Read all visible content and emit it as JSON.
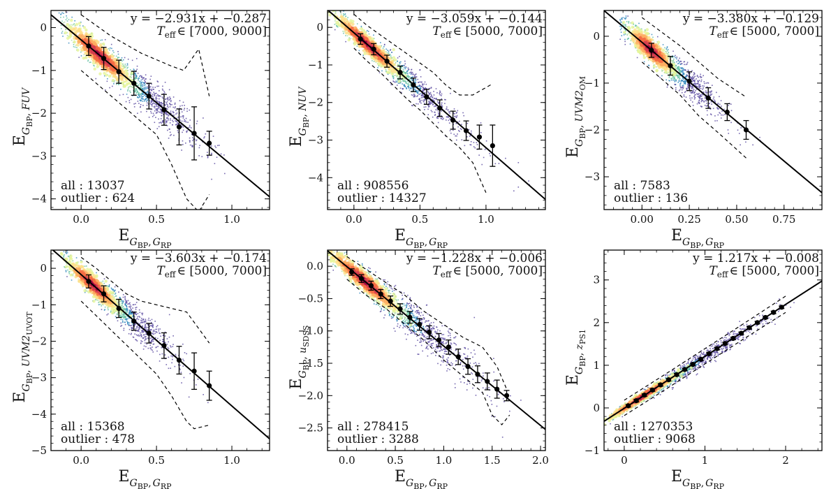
{
  "figure": {
    "description_title": ""
  },
  "chart_data": [
    {
      "type": "scatter",
      "xlabel": {
        "base": "E",
        "sub": "G",
        "subsub": "BP",
        "sub2": "G",
        "sub2sub": "RP"
      },
      "ylabel": {
        "base": "E",
        "sub": "G",
        "subsub": "BP",
        "band": "FUV",
        "band_sub": ""
      },
      "xlim": [
        -0.2,
        1.25
      ],
      "ylim": [
        -4.25,
        0.4
      ],
      "xticks": [
        0.0,
        0.5,
        1.0
      ],
      "xtick_labels": [
        "0.0",
        "0.5",
        "1.0"
      ],
      "yticks": [
        0,
        -1,
        -2,
        -3,
        -4
      ],
      "ytick_labels": [
        "0",
        "−1",
        "−2",
        "−3",
        "−4"
      ],
      "fit_text": "y = −2.931x + −0.287",
      "teff_text": "∈ [7000, 9000]",
      "fit": {
        "slope": -2.931,
        "intercept": -0.287
      },
      "binned": {
        "x": [
          0.05,
          0.15,
          0.25,
          0.35,
          0.45,
          0.55,
          0.65,
          0.75,
          0.85
        ],
        "y": [
          -0.43,
          -0.72,
          -1.03,
          -1.3,
          -1.6,
          -1.92,
          -2.32,
          -2.47,
          -2.7
        ],
        "err": [
          0.22,
          0.26,
          0.27,
          0.28,
          0.3,
          0.36,
          0.42,
          0.62,
          0.28
        ]
      },
      "envelope_upper": {
        "x": [
          0.0,
          0.1,
          0.2,
          0.3,
          0.4,
          0.5,
          0.6,
          0.68,
          0.78,
          0.85
        ],
        "y": [
          0.3,
          0.05,
          -0.2,
          -0.4,
          -0.6,
          -0.75,
          -0.9,
          -1.0,
          -0.5,
          -1.6
        ]
      },
      "envelope_lower": {
        "x": [
          0.0,
          0.1,
          0.2,
          0.3,
          0.4,
          0.5,
          0.6,
          0.7,
          0.78,
          0.85
        ],
        "y": [
          -1.0,
          -1.3,
          -1.6,
          -1.9,
          -2.2,
          -2.5,
          -3.2,
          -4.0,
          -4.3,
          -3.9
        ]
      },
      "all_text": "all : 13037",
      "outlier_text": "outlier : 624",
      "cloud": {
        "x_center": 0.3,
        "x_spread": 0.25,
        "y_scatter": 0.25,
        "x_min": -0.15,
        "x_max": 0.95
      }
    },
    {
      "type": "scatter",
      "xlabel": {
        "base": "E",
        "sub": "G",
        "subsub": "BP",
        "sub2": "G",
        "sub2sub": "RP"
      },
      "ylabel": {
        "base": "E",
        "sub": "G",
        "subsub": "BP",
        "band": "NUV",
        "band_sub": ""
      },
      "xlim": [
        -0.2,
        1.45
      ],
      "ylim": [
        -4.85,
        0.45
      ],
      "xticks": [
        0.0,
        0.5,
        1.0
      ],
      "xtick_labels": [
        "0.0",
        "0.5",
        "1.0"
      ],
      "yticks": [
        0,
        -1,
        -2,
        -3,
        -4
      ],
      "ytick_labels": [
        "0",
        "−1",
        "−2",
        "−3",
        "−4"
      ],
      "fit_text": "y = −3.059x + −0.144",
      "teff_text": "∈ [5000, 7000]",
      "fit": {
        "slope": -3.059,
        "intercept": -0.144
      },
      "binned": {
        "x": [
          0.05,
          0.15,
          0.25,
          0.35,
          0.45,
          0.55,
          0.65,
          0.75,
          0.85,
          0.95,
          1.05
        ],
        "y": [
          -0.31,
          -0.58,
          -0.9,
          -1.2,
          -1.53,
          -1.85,
          -2.15,
          -2.47,
          -2.75,
          -2.92,
          -3.15
        ],
        "err": [
          0.14,
          0.15,
          0.16,
          0.17,
          0.18,
          0.2,
          0.22,
          0.24,
          0.26,
          0.32,
          0.55
        ]
      },
      "envelope_upper": {
        "x": [
          0.0,
          0.1,
          0.2,
          0.3,
          0.4,
          0.5,
          0.6,
          0.7,
          0.8,
          0.9,
          1.05
        ],
        "y": [
          0.35,
          0.05,
          -0.2,
          -0.45,
          -0.7,
          -0.95,
          -1.2,
          -1.55,
          -1.8,
          -1.8,
          -1.5
        ]
      },
      "envelope_lower": {
        "x": [
          0.0,
          0.1,
          0.2,
          0.3,
          0.4,
          0.5,
          0.6,
          0.7,
          0.8,
          0.9,
          1.0
        ],
        "y": [
          -0.55,
          -0.9,
          -1.2,
          -1.55,
          -1.9,
          -2.2,
          -2.55,
          -2.9,
          -3.2,
          -3.6,
          -4.4
        ]
      },
      "all_text": "all : 908556",
      "outlier_text": "outlier : 14327",
      "cloud": {
        "x_center": 0.25,
        "x_spread": 0.3,
        "y_scatter": 0.22,
        "x_min": -0.15,
        "x_max": 1.35
      }
    },
    {
      "type": "scatter",
      "xlabel": {
        "base": "E",
        "sub": "G",
        "subsub": "BP",
        "sub2": "G",
        "sub2sub": "RP"
      },
      "ylabel": {
        "base": "E",
        "sub": "G",
        "subsub": "BP",
        "band": "UVM2",
        "band_sub": "OM"
      },
      "xlim": [
        -0.2,
        0.95
      ],
      "ylim": [
        -3.7,
        0.55
      ],
      "xticks": [
        0.0,
        0.25,
        0.5,
        0.75
      ],
      "xtick_labels": [
        "0.00",
        "0.25",
        "0.50",
        "0.75"
      ],
      "yticks": [
        0,
        -1,
        -2,
        -3
      ],
      "ytick_labels": [
        "0",
        "−1",
        "−2",
        "−3"
      ],
      "fit_text": "y = −3.380x + −0.129",
      "teff_text": "∈ [5000, 7000]",
      "fit": {
        "slope": -3.38,
        "intercept": -0.129
      },
      "binned": {
        "x": [
          0.05,
          0.15,
          0.25,
          0.35,
          0.45,
          0.55
        ],
        "y": [
          -0.3,
          -0.63,
          -0.96,
          -1.32,
          -1.62,
          -2.0
        ],
        "err": [
          0.15,
          0.2,
          0.2,
          0.22,
          0.18,
          0.2
        ]
      },
      "envelope_upper": {
        "x": [
          0.0,
          0.1,
          0.2,
          0.3,
          0.4,
          0.55
        ],
        "y": [
          0.4,
          0.1,
          -0.2,
          -0.55,
          -0.9,
          -1.3
        ]
      },
      "envelope_lower": {
        "x": [
          0.0,
          0.1,
          0.2,
          0.3,
          0.4,
          0.55
        ],
        "y": [
          -0.55,
          -0.9,
          -1.25,
          -1.7,
          -2.05,
          -2.6
        ]
      },
      "all_text": "all : 7583",
      "outlier_text": "outlier : 136",
      "cloud": {
        "x_center": 0.12,
        "x_spread": 0.14,
        "y_scatter": 0.22,
        "x_min": -0.12,
        "x_max": 0.7
      }
    },
    {
      "type": "scatter",
      "xlabel": {
        "base": "E",
        "sub": "G",
        "subsub": "BP",
        "sub2": "G",
        "sub2sub": "RP"
      },
      "ylabel": {
        "base": "E",
        "sub": "G",
        "subsub": "BP",
        "band": "UVM2",
        "band_sub": "UVOT"
      },
      "xlim": [
        -0.2,
        1.25
      ],
      "ylim": [
        -5.0,
        0.5
      ],
      "xticks": [
        0.0,
        0.5,
        1.0
      ],
      "xtick_labels": [
        "0.0",
        "0.5",
        "1.0"
      ],
      "yticks": [
        0,
        -1,
        -2,
        -3,
        -4,
        -5
      ],
      "ytick_labels": [
        "0",
        "−1",
        "−2",
        "−3",
        "−4",
        "−5"
      ],
      "fit_text": "y = −3.603x + −0.174",
      "teff_text": "∈ [5000, 7000]",
      "fit": {
        "slope": -3.603,
        "intercept": -0.174
      },
      "binned": {
        "x": [
          0.05,
          0.15,
          0.25,
          0.35,
          0.45,
          0.55,
          0.65,
          0.75,
          0.85
        ],
        "y": [
          -0.36,
          -0.7,
          -1.1,
          -1.45,
          -1.78,
          -2.12,
          -2.52,
          -2.82,
          -3.22
        ],
        "err": [
          0.18,
          0.22,
          0.25,
          0.25,
          0.27,
          0.35,
          0.38,
          0.5,
          0.4
        ]
      },
      "envelope_upper": {
        "x": [
          0.0,
          0.1,
          0.2,
          0.3,
          0.4,
          0.5,
          0.6,
          0.7,
          0.85
        ],
        "y": [
          0.3,
          0.0,
          -0.35,
          -0.7,
          -0.9,
          -1.0,
          -1.1,
          -1.2,
          -2.05
        ]
      },
      "envelope_lower": {
        "x": [
          0.0,
          0.1,
          0.2,
          0.3,
          0.4,
          0.5,
          0.6,
          0.7,
          0.75,
          0.85
        ],
        "y": [
          -0.9,
          -1.3,
          -1.7,
          -2.1,
          -2.5,
          -2.9,
          -3.5,
          -4.2,
          -4.4,
          -4.3
        ]
      },
      "all_text": "all : 15368",
      "outlier_text": "outlier : 478",
      "cloud": {
        "x_center": 0.2,
        "x_spread": 0.2,
        "y_scatter": 0.25,
        "x_min": -0.12,
        "x_max": 0.95
      }
    },
    {
      "type": "scatter",
      "xlabel": {
        "base": "E",
        "sub": "G",
        "subsub": "BP",
        "sub2": "G",
        "sub2sub": "RP"
      },
      "ylabel": {
        "base": "E",
        "sub": "G",
        "subsub": "BP",
        "band": "u",
        "band_sub": "SDSS"
      },
      "xlim": [
        -0.2,
        2.05
      ],
      "ylim": [
        -2.85,
        0.25
      ],
      "xticks": [
        0.0,
        0.5,
        1.0,
        1.5,
        2.0
      ],
      "xtick_labels": [
        "0.0",
        "0.5",
        "1.0",
        "1.5",
        "2.0"
      ],
      "yticks": [
        0.0,
        -0.5,
        -1.0,
        -1.5,
        -2.0,
        -2.5
      ],
      "ytick_labels": [
        "0.0",
        "−0.5",
        "−1.0",
        "−1.5",
        "−2.0",
        "−2.5"
      ],
      "fit_text": "y = −1.228x + −0.006",
      "teff_text": "∈ [5000, 7000]",
      "fit": {
        "slope": -1.228,
        "intercept": -0.006
      },
      "binned": {
        "x": [
          0.05,
          0.15,
          0.25,
          0.35,
          0.45,
          0.55,
          0.65,
          0.75,
          0.85,
          0.95,
          1.05,
          1.15,
          1.25,
          1.35,
          1.45,
          1.55,
          1.65
        ],
        "y": [
          -0.09,
          -0.19,
          -0.3,
          -0.43,
          -0.54,
          -0.66,
          -0.79,
          -0.9,
          -1.02,
          -1.14,
          -1.25,
          -1.4,
          -1.55,
          -1.67,
          -1.78,
          -1.9,
          -2.0
        ],
        "err": [
          0.05,
          0.06,
          0.07,
          0.07,
          0.08,
          0.08,
          0.09,
          0.09,
          0.1,
          0.1,
          0.11,
          0.12,
          0.12,
          0.13,
          0.13,
          0.14,
          0.08
        ]
      },
      "envelope_upper": {
        "x": [
          0.0,
          0.2,
          0.4,
          0.6,
          0.8,
          1.0,
          1.2,
          1.4,
          1.55,
          1.65
        ],
        "y": [
          0.15,
          -0.05,
          -0.25,
          -0.45,
          -0.7,
          -0.9,
          -1.1,
          -1.25,
          -1.55,
          -1.9
        ]
      },
      "envelope_lower": {
        "x": [
          0.0,
          0.2,
          0.4,
          0.6,
          0.8,
          1.0,
          1.2,
          1.4,
          1.5,
          1.6,
          1.68
        ],
        "y": [
          -0.2,
          -0.45,
          -0.65,
          -0.9,
          -1.15,
          -1.45,
          -1.7,
          -1.95,
          -2.3,
          -2.45,
          -2.3
        ]
      },
      "all_text": "all : 278415",
      "outlier_text": "outlier : 3288",
      "cloud": {
        "x_center": 0.45,
        "x_spread": 0.45,
        "y_scatter": 0.14,
        "x_min": -0.15,
        "x_max": 1.8
      }
    },
    {
      "type": "scatter",
      "xlabel": {
        "base": "E",
        "sub": "G",
        "subsub": "BP",
        "sub2": "G",
        "sub2sub": "RP"
      },
      "ylabel": {
        "base": "E",
        "sub": "G",
        "subsub": "BP",
        "band": "z",
        "band_sub": "PS1"
      },
      "xlim": [
        -0.25,
        2.45
      ],
      "ylim": [
        -1.0,
        3.7
      ],
      "xticks": [
        0,
        1,
        2
      ],
      "xtick_labels": [
        "0",
        "1",
        "2"
      ],
      "yticks": [
        -1,
        0,
        1,
        2,
        3
      ],
      "ytick_labels": [
        "−1",
        "0",
        "1",
        "2",
        "3"
      ],
      "fit_text": "y = 1.217x + −0.008",
      "teff_text": "∈ [5000, 7000]",
      "fit": {
        "slope": 1.217,
        "intercept": -0.008
      },
      "binned": {
        "x": [
          0.05,
          0.15,
          0.25,
          0.35,
          0.45,
          0.55,
          0.65,
          0.75,
          0.85,
          0.95,
          1.05,
          1.15,
          1.25,
          1.35,
          1.45,
          1.55,
          1.65,
          1.75,
          1.85,
          1.95
        ],
        "y": [
          0.05,
          0.17,
          0.3,
          0.42,
          0.54,
          0.66,
          0.78,
          0.9,
          1.02,
          1.14,
          1.27,
          1.39,
          1.51,
          1.63,
          1.75,
          1.88,
          2.0,
          2.12,
          2.24,
          2.36
        ],
        "err": [
          0.03,
          0.03,
          0.03,
          0.03,
          0.03,
          0.03,
          0.03,
          0.03,
          0.03,
          0.03,
          0.03,
          0.03,
          0.03,
          0.03,
          0.03,
          0.03,
          0.03,
          0.03,
          0.03,
          0.03
        ]
      },
      "envelope_upper": {
        "x": [
          0.0,
          0.5,
          1.0,
          1.5,
          2.0
        ],
        "y": [
          0.18,
          0.78,
          1.39,
          2.0,
          2.62
        ]
      },
      "envelope_lower": {
        "x": [
          0.0,
          0.5,
          1.0,
          1.5,
          2.0
        ],
        "y": [
          -0.18,
          0.42,
          1.03,
          1.64,
          2.24
        ]
      },
      "all_text": "all : 1270353",
      "outlier_text": "outlier : 9068",
      "cloud": {
        "x_center": 0.55,
        "x_spread": 0.55,
        "y_scatter": 0.08,
        "x_min": -0.2,
        "x_max": 2.1
      }
    }
  ],
  "colors": {
    "scatter_low": "#5e4fa2",
    "heat": [
      "#5e4fa2",
      "#3288bd",
      "#66c2a5",
      "#abdda4",
      "#e6f598",
      "#fee08b",
      "#fdae61",
      "#f46d43",
      "#d53e4f",
      "#9e0142"
    ],
    "line": "#000000"
  }
}
